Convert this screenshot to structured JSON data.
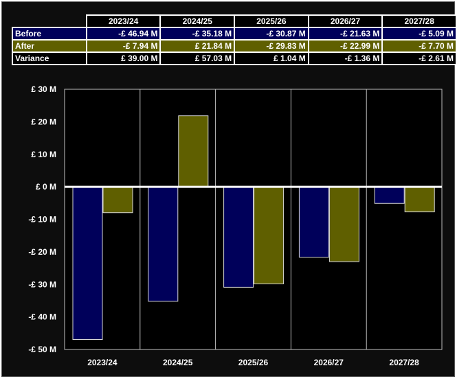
{
  "table": {
    "years": [
      "2023/24",
      "2024/25",
      "2025/26",
      "2026/27",
      "2027/28"
    ],
    "rows": [
      {
        "label": "Before",
        "values": [
          "-£ 46.94 M",
          "-£ 35.18 M",
          "-£ 30.87 M",
          "-£ 21.63 M",
          "-£ 5.09 M"
        ],
        "color": "#00005a"
      },
      {
        "label": "After",
        "values": [
          "-£ 7.94 M",
          "£ 21.84 M",
          "-£ 29.83 M",
          "-£ 22.99 M",
          "-£ 7.70 M"
        ],
        "color": "#5f5f00"
      },
      {
        "label": "Variance",
        "values": [
          "£ 39.00 M",
          "£ 57.03 M",
          "£ 1.04 M",
          "-£ 1.36 M",
          "-£ 2.61 M"
        ],
        "color": "#000000"
      }
    ]
  },
  "chart_data": {
    "type": "bar",
    "categories": [
      "2023/24",
      "2024/25",
      "2025/26",
      "2026/27",
      "2027/28"
    ],
    "series": [
      {
        "name": "Before",
        "values": [
          -46.94,
          -35.18,
          -30.87,
          -21.63,
          -5.09
        ],
        "color": "#00005a"
      },
      {
        "name": "After",
        "values": [
          -7.94,
          21.84,
          -29.83,
          -22.99,
          -7.7
        ],
        "color": "#5f5f00"
      }
    ],
    "ylim": [
      -50,
      30
    ],
    "yticks": [
      30,
      20,
      10,
      0,
      -10,
      -20,
      -30,
      -40,
      -50
    ],
    "ytick_labels": [
      "£ 30 M",
      "£ 20 M",
      "£ 10 M",
      "£ 0 M",
      "-£ 10 M",
      "-£ 20 M",
      "-£ 30 M",
      "-£ 40 M",
      "-£ 50 M"
    ],
    "grid": "vertical category separators",
    "title": "",
    "xlabel": "",
    "ylabel": ""
  }
}
